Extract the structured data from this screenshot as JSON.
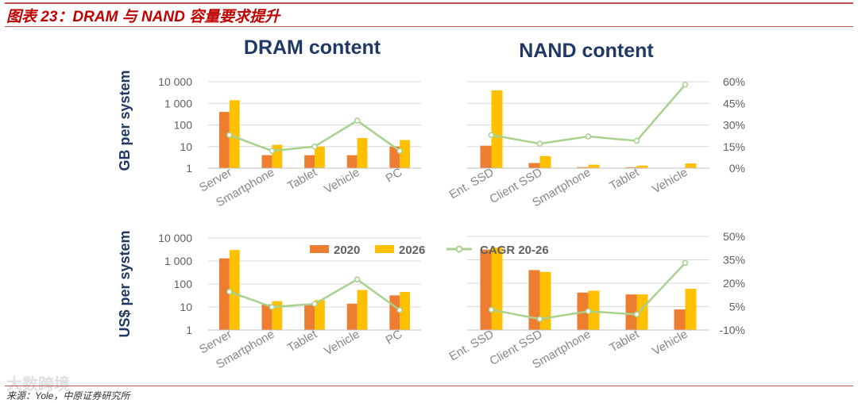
{
  "header": {
    "title": "图表 23：DRAM 与 NAND 容量要求提升"
  },
  "footer": {
    "source": "来源：Yole，中原证券研究所",
    "watermark": "大数跨境"
  },
  "colors": {
    "s2020": "#ed7d31",
    "s2026": "#ffc000",
    "cagr": "#a9d18e",
    "title": "#1f3864",
    "accent": "#c00000"
  },
  "legend": {
    "s2020": "2020",
    "s2026": "2026",
    "cagr": "CAGR 20-26"
  },
  "chart_data": [
    {
      "type": "bar",
      "title": "DRAM content",
      "ylabel": "GB per system",
      "yscale": "log",
      "ylim": [
        1,
        10000
      ],
      "yticks": [
        "1",
        "10",
        "100",
        "1 000",
        "10 000"
      ],
      "categories": [
        "Server",
        "Smartphone",
        "Tablet",
        "Vehicle",
        "PC"
      ],
      "series": [
        {
          "name": "2020",
          "values": [
            400,
            4,
            4,
            4,
            10
          ]
        },
        {
          "name": "2026",
          "values": [
            1400,
            12,
            10,
            25,
            20
          ]
        }
      ],
      "line": {
        "name": "CAGR 20-26",
        "values": [
          23,
          12,
          15,
          33,
          12
        ],
        "ylim": [
          0,
          60
        ]
      }
    },
    {
      "type": "bar",
      "title": "NAND content",
      "ylabel": "",
      "yscale": "linear",
      "ylim": [
        0,
        10000
      ],
      "yticks": [],
      "categories": [
        "Ent. SSD",
        "Client SSD",
        "Smartphone",
        "Tablet",
        "Vehicle"
      ],
      "series": [
        {
          "name": "2020",
          "values": [
            2600,
            600,
            120,
            110,
            35
          ]
        },
        {
          "name": "2026",
          "values": [
            9000,
            1400,
            400,
            300,
            550
          ]
        }
      ],
      "line": {
        "name": "CAGR 20-26",
        "values": [
          23,
          17,
          22,
          19,
          58
        ],
        "ylim": [
          0,
          60
        ]
      },
      "y2ticks": [
        "0%",
        "15%",
        "30%",
        "45%",
        "60%"
      ]
    },
    {
      "type": "bar",
      "title": "",
      "ylabel": "US$ per system",
      "yscale": "log",
      "ylim": [
        1,
        10000
      ],
      "yticks": [
        "1",
        "10",
        "100",
        "1 000",
        "10 000"
      ],
      "categories": [
        "Server",
        "Smartphone",
        "Tablet",
        "Vehicle",
        "PC"
      ],
      "series": [
        {
          "name": "2020",
          "values": [
            1300,
            13,
            13,
            14,
            32
          ]
        },
        {
          "name": "2026",
          "values": [
            3000,
            18,
            20,
            55,
            45
          ]
        }
      ],
      "line": {
        "name": "CAGR 20-26",
        "values": [
          15,
          5,
          7,
          23,
          3
        ],
        "ylim": [
          -10,
          50
        ]
      }
    },
    {
      "type": "bar",
      "title": "",
      "ylabel": "",
      "yscale": "linear",
      "ylim": [
        0,
        10000
      ],
      "yticks": [],
      "categories": [
        "Ent. SSD",
        "Client SSD",
        "Smartphone",
        "Tablet",
        "Vehicle"
      ],
      "series": [
        {
          "name": "2020",
          "values": [
            8600,
            6400,
            4000,
            3800,
            2200
          ]
        },
        {
          "name": "2026",
          "values": [
            8800,
            6200,
            4200,
            3800,
            4400
          ]
        }
      ],
      "line": {
        "name": "CAGR 20-26",
        "values": [
          3,
          -3,
          2,
          0,
          33
        ],
        "ylim": [
          -10,
          50
        ]
      },
      "y2ticks": [
        "-10%",
        "5%",
        "20%",
        "35%",
        "50%"
      ]
    }
  ]
}
